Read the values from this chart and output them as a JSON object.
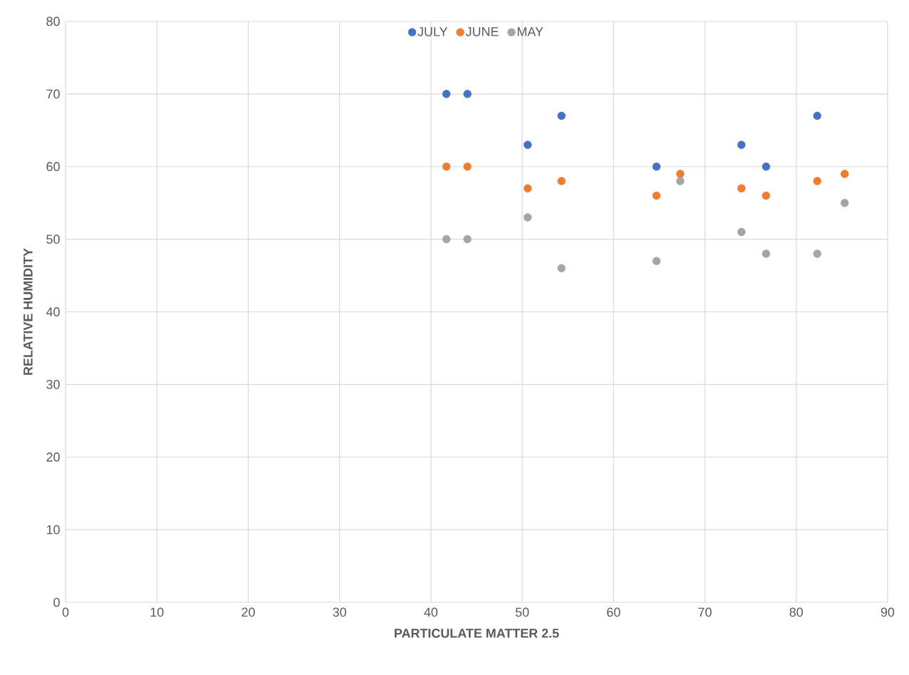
{
  "chart_data": {
    "type": "scatter",
    "xlabel": "PARTICULATE MATTER 2.5",
    "ylabel": "RELATIVE HUMIDITY",
    "xlim": [
      0,
      90
    ],
    "xticks": [
      0,
      10,
      20,
      30,
      40,
      50,
      60,
      70,
      80,
      90
    ],
    "ylim": [
      0,
      80
    ],
    "yticks": [
      0,
      10,
      20,
      30,
      40,
      50,
      60,
      70,
      80
    ],
    "grid": true,
    "legend": "top",
    "marker": "circle",
    "series": [
      {
        "name": "JULY",
        "color": "#4472c4",
        "x": [
          41.7,
          44.0,
          50.6,
          54.3,
          64.7,
          74.0,
          76.7,
          82.3
        ],
        "values": [
          70,
          70,
          63,
          67,
          60,
          63,
          60,
          67
        ]
      },
      {
        "name": "JUNE",
        "color": "#ed7d31",
        "x": [
          41.7,
          44.0,
          50.6,
          54.3,
          64.7,
          67.3,
          74.0,
          76.7,
          82.3,
          85.3
        ],
        "values": [
          60,
          60,
          57,
          58,
          56,
          59,
          57,
          56,
          58,
          59
        ]
      },
      {
        "name": "MAY",
        "color": "#a5a5a5",
        "x": [
          41.7,
          44.0,
          50.6,
          54.3,
          64.7,
          67.3,
          74.0,
          76.7,
          82.3,
          85.3
        ],
        "values": [
          50,
          50,
          53,
          46,
          47,
          58,
          51,
          48,
          48,
          55
        ]
      }
    ]
  }
}
